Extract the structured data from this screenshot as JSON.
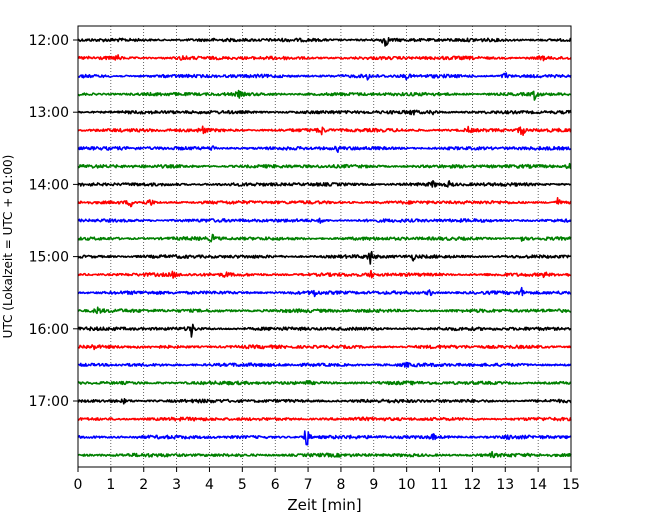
{
  "chart_data": {
    "type": "line",
    "title": "",
    "xlabel": "Zeit  [min]",
    "ylabel": "UTC (Lokalzeit = UTC + 01:00)",
    "xlim": [
      0,
      15
    ],
    "x_ticks": [
      0,
      1,
      2,
      3,
      4,
      5,
      6,
      7,
      8,
      9,
      10,
      11,
      12,
      13,
      14,
      15
    ],
    "x_tick_labels": [
      "0",
      "1",
      "2",
      "3",
      "4",
      "5",
      "6",
      "7",
      "8",
      "9",
      "10",
      "11",
      "12",
      "13",
      "14",
      "15"
    ],
    "y_ticks_hours": [
      "12:00",
      "13:00",
      "14:00",
      "15:00",
      "16:00",
      "17:00"
    ],
    "rows_per_hour": 4,
    "row_interval_min": 15,
    "grid": "vertical-dotted",
    "series_colors": [
      "#000000",
      "#ff0000",
      "#0000ff",
      "#008000"
    ],
    "traces": [
      {
        "start": "12:00",
        "color": "#000000",
        "events": [
          [
            9.35,
            9
          ]
        ]
      },
      {
        "start": "12:15",
        "color": "#ff0000",
        "events": [
          [
            1.2,
            3
          ],
          [
            3.2,
            3
          ],
          [
            14.1,
            4
          ]
        ]
      },
      {
        "start": "12:30",
        "color": "#0000ff",
        "events": [
          [
            8.8,
            3
          ],
          [
            10.0,
            3
          ],
          [
            13.0,
            5
          ]
        ]
      },
      {
        "start": "12:45",
        "color": "#008000",
        "events": [
          [
            4.9,
            3
          ],
          [
            13.9,
            6
          ]
        ]
      },
      {
        "start": "13:00",
        "color": "#000000",
        "events": [
          [
            10.2,
            3
          ],
          [
            10.8,
            3
          ]
        ]
      },
      {
        "start": "13:15",
        "color": "#ff0000",
        "events": [
          [
            3.8,
            4
          ],
          [
            7.4,
            5
          ],
          [
            11.9,
            4
          ],
          [
            13.5,
            8
          ]
        ]
      },
      {
        "start": "13:30",
        "color": "#0000ff",
        "events": [
          [
            4.1,
            3
          ],
          [
            7.9,
            3
          ]
        ]
      },
      {
        "start": "13:45",
        "color": "#008000",
        "events": [
          [
            14.95,
            5
          ]
        ]
      },
      {
        "start": "14:00",
        "color": "#000000",
        "events": [
          [
            10.8,
            3
          ],
          [
            11.3,
            3
          ]
        ]
      },
      {
        "start": "14:15",
        "color": "#ff0000",
        "events": [
          [
            1.6,
            4
          ],
          [
            2.2,
            4
          ],
          [
            14.6,
            5
          ]
        ]
      },
      {
        "start": "14:30",
        "color": "#0000ff",
        "events": [
          [
            7.4,
            3
          ]
        ]
      },
      {
        "start": "14:45",
        "color": "#008000",
        "events": [
          [
            4.1,
            4
          ],
          [
            13.5,
            3
          ]
        ]
      },
      {
        "start": "15:00",
        "color": "#000000",
        "events": [
          [
            8.9,
            8
          ],
          [
            10.2,
            3
          ]
        ]
      },
      {
        "start": "15:15",
        "color": "#ff0000",
        "events": [
          [
            2.9,
            3
          ],
          [
            4.5,
            3
          ],
          [
            8.9,
            4
          ],
          [
            14.2,
            3
          ]
        ]
      },
      {
        "start": "15:30",
        "color": "#0000ff",
        "events": [
          [
            7.2,
            3
          ],
          [
            10.7,
            4
          ],
          [
            13.5,
            4
          ]
        ]
      },
      {
        "start": "15:45",
        "color": "#008000",
        "events": [
          [
            0.6,
            4
          ]
        ]
      },
      {
        "start": "16:00",
        "color": "#000000",
        "events": [
          [
            3.45,
            8
          ]
        ]
      },
      {
        "start": "16:15",
        "color": "#ff0000",
        "events": [
          [
            0.5,
            2
          ]
        ]
      },
      {
        "start": "16:30",
        "color": "#0000ff",
        "events": [
          [
            10.0,
            2
          ]
        ]
      },
      {
        "start": "16:45",
        "color": "#008000",
        "events": [
          [
            7.0,
            2
          ]
        ]
      },
      {
        "start": "17:00",
        "color": "#000000",
        "events": [
          [
            1.4,
            2
          ]
        ]
      },
      {
        "start": "17:15",
        "color": "#ff0000",
        "events": []
      },
      {
        "start": "17:30",
        "color": "#0000ff",
        "events": [
          [
            6.95,
            14
          ],
          [
            10.8,
            3
          ],
          [
            13.1,
            3
          ]
        ]
      },
      {
        "start": "17:45",
        "color": "#008000",
        "events": [
          [
            12.6,
            2
          ]
        ]
      }
    ]
  }
}
